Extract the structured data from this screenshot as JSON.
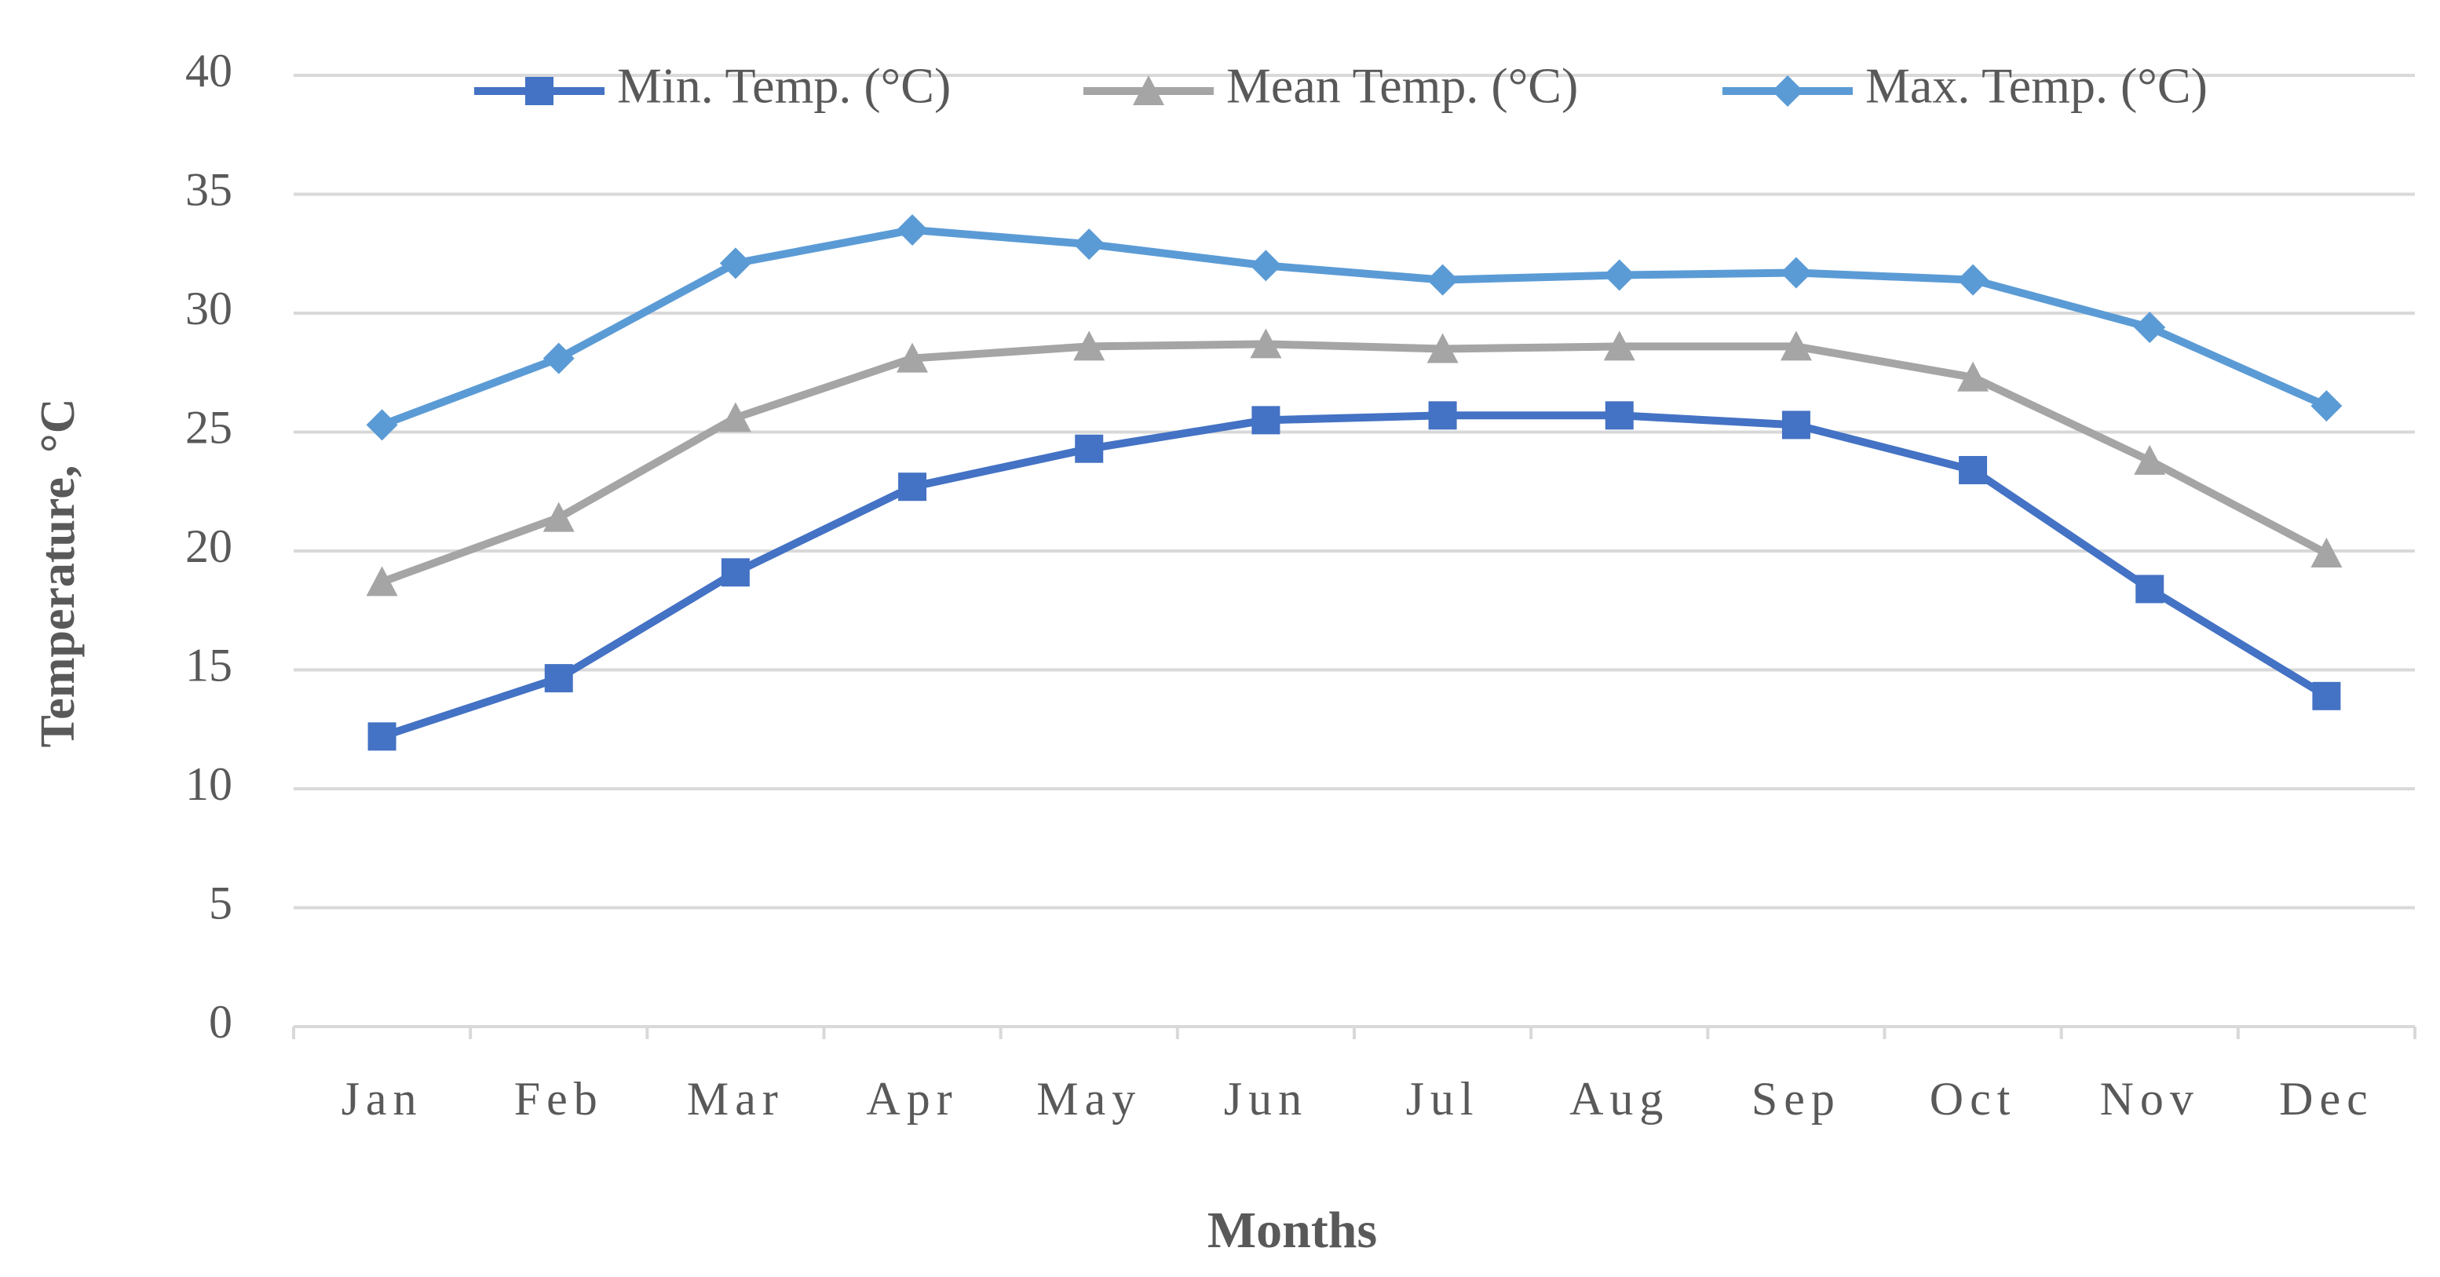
{
  "chart_data": {
    "type": "line",
    "x_label": "Months",
    "y_label": "Temperature, °C",
    "categories": [
      "Jan",
      "Feb",
      "Mar",
      "Apr",
      "May",
      "Jun",
      "Jul",
      "Aug",
      "Sep",
      "Oct",
      "Nov",
      "Dec"
    ],
    "series": [
      {
        "name": "Min. Temp. (°C)",
        "color": "#4472c4",
        "marker": "square",
        "values": [
          12.2,
          14.65,
          19.1,
          22.7,
          24.3,
          25.5,
          25.7,
          25.7,
          25.3,
          23.4,
          18.4,
          13.9
        ]
      },
      {
        "name": "Mean Temp. (°C)",
        "color": "#a5a5a5",
        "marker": "triangle",
        "values": [
          18.7,
          21.4,
          25.6,
          28.1,
          28.6,
          28.7,
          28.5,
          28.6,
          28.6,
          27.3,
          23.8,
          19.9
        ]
      },
      {
        "name": "Max. Temp. (°C)",
        "color": "#5b9bd5",
        "marker": "diamond",
        "values": [
          25.3,
          28.1,
          32.1,
          33.5,
          32.9,
          32.0,
          31.4,
          31.6,
          31.7,
          31.4,
          29.4,
          26.1
        ]
      }
    ],
    "ylim": [
      0,
      40
    ],
    "yticks": [
      0,
      5,
      10,
      15,
      20,
      25,
      30,
      35,
      40
    ],
    "grid": true,
    "legend": "top"
  }
}
